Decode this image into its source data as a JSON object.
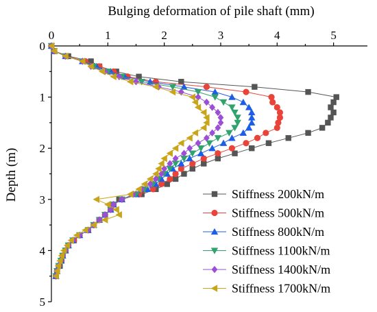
{
  "chart_data": {
    "type": "line",
    "title": "",
    "xlabel": "Bulging deformation of pile shaft (mm)",
    "ylabel": "Depth (m)",
    "x_axis_position": "top",
    "y_axis_inverted": true,
    "xlim": [
      0,
      5.6
    ],
    "ylim": [
      0,
      5
    ],
    "xticks": [
      "0",
      "1",
      "2",
      "3",
      "4",
      "5"
    ],
    "yticks": [
      "0",
      "1",
      "2",
      "3",
      "4",
      "5"
    ],
    "grid": false,
    "legend_position": "bottom-right",
    "series": [
      {
        "name": "Stiffness 200kN/m",
        "color": "#555555",
        "marker": "square",
        "points": [
          [
            0.0,
            0.0
          ],
          [
            0.05,
            0.1
          ],
          [
            0.3,
            0.2
          ],
          [
            0.7,
            0.3
          ],
          [
            0.85,
            0.4
          ],
          [
            1.15,
            0.5
          ],
          [
            1.55,
            0.6
          ],
          [
            2.3,
            0.7
          ],
          [
            3.6,
            0.8
          ],
          [
            4.55,
            0.9
          ],
          [
            5.05,
            1.0
          ],
          [
            5.0,
            1.1
          ],
          [
            4.95,
            1.2
          ],
          [
            5.0,
            1.3
          ],
          [
            4.95,
            1.4
          ],
          [
            4.9,
            1.5
          ],
          [
            4.8,
            1.6
          ],
          [
            4.55,
            1.7
          ],
          [
            4.2,
            1.8
          ],
          [
            3.85,
            1.9
          ],
          [
            3.55,
            2.0
          ],
          [
            3.25,
            2.1
          ],
          [
            2.95,
            2.2
          ],
          [
            2.7,
            2.3
          ],
          [
            2.5,
            2.4
          ],
          [
            2.35,
            2.5
          ],
          [
            2.2,
            2.6
          ],
          [
            2.05,
            2.7
          ],
          [
            1.85,
            2.8
          ],
          [
            1.6,
            2.9
          ],
          [
            1.2,
            3.0
          ],
          [
            1.1,
            3.1
          ],
          [
            1.05,
            3.2
          ],
          [
            0.95,
            3.3
          ],
          [
            0.85,
            3.4
          ],
          [
            0.75,
            3.5
          ],
          [
            0.65,
            3.6
          ],
          [
            0.5,
            3.7
          ],
          [
            0.4,
            3.8
          ],
          [
            0.3,
            3.9
          ],
          [
            0.25,
            4.0
          ],
          [
            0.2,
            4.1
          ],
          [
            0.18,
            4.2
          ],
          [
            0.15,
            4.3
          ],
          [
            0.1,
            4.4
          ],
          [
            0.08,
            4.5
          ]
        ]
      },
      {
        "name": "Stiffness 500kN/m",
        "color": "#e8443a",
        "marker": "circle",
        "points": [
          [
            0.0,
            0.0
          ],
          [
            0.05,
            0.1
          ],
          [
            0.25,
            0.2
          ],
          [
            0.6,
            0.3
          ],
          [
            0.85,
            0.4
          ],
          [
            1.1,
            0.5
          ],
          [
            1.35,
            0.6
          ],
          [
            1.85,
            0.7
          ],
          [
            2.75,
            0.8
          ],
          [
            3.45,
            0.9
          ],
          [
            3.9,
            1.0
          ],
          [
            3.92,
            1.1
          ],
          [
            4.0,
            1.2
          ],
          [
            4.05,
            1.3
          ],
          [
            4.05,
            1.4
          ],
          [
            4.02,
            1.5
          ],
          [
            4.0,
            1.6
          ],
          [
            3.8,
            1.7
          ],
          [
            3.65,
            1.8
          ],
          [
            3.45,
            1.9
          ],
          [
            3.2,
            2.0
          ],
          [
            2.95,
            2.1
          ],
          [
            2.7,
            2.2
          ],
          [
            2.5,
            2.3
          ],
          [
            2.3,
            2.4
          ],
          [
            2.2,
            2.5
          ],
          [
            2.1,
            2.6
          ],
          [
            1.95,
            2.7
          ],
          [
            1.8,
            2.8
          ],
          [
            1.55,
            2.9
          ],
          [
            1.25,
            3.0
          ],
          [
            1.1,
            3.1
          ],
          [
            1.05,
            3.2
          ],
          [
            0.95,
            3.3
          ],
          [
            0.85,
            3.4
          ],
          [
            0.75,
            3.5
          ],
          [
            0.65,
            3.6
          ],
          [
            0.5,
            3.7
          ],
          [
            0.4,
            3.8
          ],
          [
            0.3,
            3.9
          ],
          [
            0.25,
            4.0
          ],
          [
            0.2,
            4.1
          ],
          [
            0.17,
            4.2
          ],
          [
            0.13,
            4.3
          ],
          [
            0.1,
            4.4
          ],
          [
            0.08,
            4.5
          ]
        ]
      },
      {
        "name": "Stiffness 800kN/m",
        "color": "#1e5de6",
        "marker": "triangle-up",
        "points": [
          [
            0.0,
            0.0
          ],
          [
            0.05,
            0.1
          ],
          [
            0.25,
            0.2
          ],
          [
            0.55,
            0.3
          ],
          [
            0.8,
            0.4
          ],
          [
            1.05,
            0.5
          ],
          [
            1.3,
            0.6
          ],
          [
            1.75,
            0.7
          ],
          [
            2.35,
            0.8
          ],
          [
            2.9,
            0.9
          ],
          [
            3.2,
            1.0
          ],
          [
            3.4,
            1.1
          ],
          [
            3.5,
            1.2
          ],
          [
            3.55,
            1.3
          ],
          [
            3.55,
            1.4
          ],
          [
            3.55,
            1.5
          ],
          [
            3.5,
            1.6
          ],
          [
            3.4,
            1.7
          ],
          [
            3.2,
            1.8
          ],
          [
            3.05,
            1.9
          ],
          [
            2.85,
            2.0
          ],
          [
            2.65,
            2.1
          ],
          [
            2.45,
            2.2
          ],
          [
            2.3,
            2.3
          ],
          [
            2.15,
            2.4
          ],
          [
            2.05,
            2.5
          ],
          [
            1.95,
            2.6
          ],
          [
            1.85,
            2.7
          ],
          [
            1.7,
            2.8
          ],
          [
            1.5,
            2.9
          ],
          [
            1.25,
            3.0
          ],
          [
            1.1,
            3.1
          ],
          [
            1.05,
            3.2
          ],
          [
            0.95,
            3.3
          ],
          [
            0.85,
            3.4
          ],
          [
            0.75,
            3.5
          ],
          [
            0.65,
            3.6
          ],
          [
            0.5,
            3.7
          ],
          [
            0.38,
            3.8
          ],
          [
            0.3,
            3.9
          ],
          [
            0.25,
            4.0
          ],
          [
            0.2,
            4.1
          ],
          [
            0.17,
            4.2
          ],
          [
            0.13,
            4.3
          ],
          [
            0.1,
            4.4
          ],
          [
            0.08,
            4.5
          ]
        ]
      },
      {
        "name": "Stiffness 1100kN/m",
        "color": "#2fa36b",
        "marker": "triangle-down",
        "points": [
          [
            0.0,
            0.0
          ],
          [
            0.05,
            0.1
          ],
          [
            0.25,
            0.2
          ],
          [
            0.55,
            0.3
          ],
          [
            0.75,
            0.4
          ],
          [
            1.0,
            0.5
          ],
          [
            1.25,
            0.6
          ],
          [
            1.6,
            0.7
          ],
          [
            2.15,
            0.8
          ],
          [
            2.6,
            0.9
          ],
          [
            2.9,
            1.0
          ],
          [
            3.05,
            1.1
          ],
          [
            3.2,
            1.2
          ],
          [
            3.25,
            1.3
          ],
          [
            3.3,
            1.4
          ],
          [
            3.3,
            1.5
          ],
          [
            3.25,
            1.6
          ],
          [
            3.15,
            1.7
          ],
          [
            2.95,
            1.8
          ],
          [
            2.8,
            1.9
          ],
          [
            2.65,
            2.0
          ],
          [
            2.5,
            2.1
          ],
          [
            2.35,
            2.2
          ],
          [
            2.2,
            2.3
          ],
          [
            2.1,
            2.4
          ],
          [
            2.0,
            2.5
          ],
          [
            1.9,
            2.6
          ],
          [
            1.8,
            2.7
          ],
          [
            1.65,
            2.8
          ],
          [
            1.5,
            2.9
          ],
          [
            1.25,
            3.0
          ],
          [
            1.1,
            3.1
          ],
          [
            1.05,
            3.2
          ],
          [
            0.95,
            3.3
          ],
          [
            0.85,
            3.4
          ],
          [
            0.75,
            3.5
          ],
          [
            0.65,
            3.6
          ],
          [
            0.5,
            3.7
          ],
          [
            0.38,
            3.8
          ],
          [
            0.3,
            3.9
          ],
          [
            0.25,
            4.0
          ],
          [
            0.2,
            4.1
          ],
          [
            0.17,
            4.2
          ],
          [
            0.13,
            4.3
          ],
          [
            0.1,
            4.4
          ],
          [
            0.08,
            4.5
          ]
        ]
      },
      {
        "name": "Stiffness 1400kN/m",
        "color": "#9b4fd6",
        "marker": "diamond",
        "points": [
          [
            0.0,
            0.0
          ],
          [
            0.05,
            0.1
          ],
          [
            0.25,
            0.2
          ],
          [
            0.55,
            0.3
          ],
          [
            0.7,
            0.4
          ],
          [
            0.95,
            0.5
          ],
          [
            1.2,
            0.6
          ],
          [
            1.5,
            0.7
          ],
          [
            1.9,
            0.8
          ],
          [
            2.3,
            0.9
          ],
          [
            2.6,
            1.0
          ],
          [
            2.75,
            1.1
          ],
          [
            2.85,
            1.2
          ],
          [
            2.95,
            1.3
          ],
          [
            3.0,
            1.4
          ],
          [
            3.0,
            1.5
          ],
          [
            2.95,
            1.6
          ],
          [
            2.85,
            1.7
          ],
          [
            2.75,
            1.8
          ],
          [
            2.6,
            1.9
          ],
          [
            2.45,
            2.0
          ],
          [
            2.35,
            2.1
          ],
          [
            2.2,
            2.2
          ],
          [
            2.1,
            2.3
          ],
          [
            2.0,
            2.4
          ],
          [
            1.95,
            2.5
          ],
          [
            1.85,
            2.6
          ],
          [
            1.75,
            2.7
          ],
          [
            1.6,
            2.8
          ],
          [
            1.45,
            2.9
          ],
          [
            1.25,
            3.0
          ],
          [
            1.1,
            3.1
          ],
          [
            1.05,
            3.2
          ],
          [
            0.95,
            3.3
          ],
          [
            0.85,
            3.4
          ],
          [
            0.75,
            3.5
          ],
          [
            0.65,
            3.6
          ],
          [
            0.5,
            3.7
          ],
          [
            0.38,
            3.8
          ],
          [
            0.3,
            3.9
          ],
          [
            0.25,
            4.0
          ],
          [
            0.2,
            4.1
          ],
          [
            0.17,
            4.2
          ],
          [
            0.13,
            4.3
          ],
          [
            0.1,
            4.4
          ],
          [
            0.08,
            4.5
          ]
        ]
      },
      {
        "name": "Stiffness 1700kN/m",
        "color": "#c9a51a",
        "marker": "triangle-left",
        "points": [
          [
            0.0,
            0.0
          ],
          [
            0.05,
            0.1
          ],
          [
            0.25,
            0.2
          ],
          [
            0.55,
            0.3
          ],
          [
            0.7,
            0.4
          ],
          [
            0.9,
            0.5
          ],
          [
            1.1,
            0.6
          ],
          [
            1.4,
            0.7
          ],
          [
            1.85,
            0.8
          ],
          [
            2.15,
            0.9
          ],
          [
            2.5,
            1.0
          ],
          [
            2.55,
            1.1
          ],
          [
            2.6,
            1.2
          ],
          [
            2.7,
            1.3
          ],
          [
            2.75,
            1.4
          ],
          [
            2.75,
            1.5
          ],
          [
            2.7,
            1.6
          ],
          [
            2.55,
            1.7
          ],
          [
            2.45,
            1.8
          ],
          [
            2.3,
            1.9
          ],
          [
            2.2,
            2.0
          ],
          [
            2.1,
            2.1
          ],
          [
            2.0,
            2.2
          ],
          [
            1.95,
            2.3
          ],
          [
            1.9,
            2.4
          ],
          [
            1.85,
            2.5
          ],
          [
            1.75,
            2.6
          ],
          [
            1.65,
            2.7
          ],
          [
            1.55,
            2.8
          ],
          [
            1.4,
            2.9
          ],
          [
            0.8,
            3.0
          ],
          [
            1.0,
            3.1
          ],
          [
            1.15,
            3.2
          ],
          [
            1.2,
            3.3
          ],
          [
            0.95,
            3.4
          ],
          [
            0.75,
            3.5
          ],
          [
            0.6,
            3.6
          ],
          [
            0.45,
            3.7
          ],
          [
            0.35,
            3.8
          ],
          [
            0.28,
            3.9
          ],
          [
            0.22,
            4.0
          ],
          [
            0.18,
            4.1
          ],
          [
            0.15,
            4.2
          ],
          [
            0.12,
            4.3
          ],
          [
            0.1,
            4.4
          ],
          [
            0.08,
            4.5
          ]
        ]
      }
    ]
  }
}
